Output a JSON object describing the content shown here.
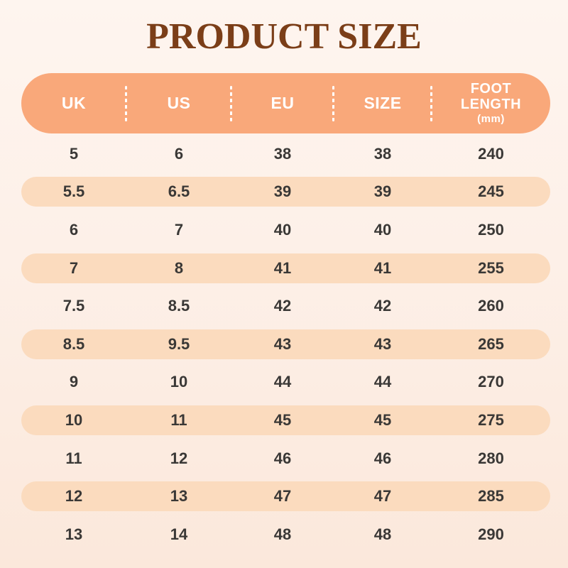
{
  "title": "PRODUCT SIZE",
  "colors": {
    "page_bg_top": "#fef5ef",
    "page_bg_bottom": "#fbe8db",
    "header_bg": "#f9a87a",
    "header_text": "#ffffff",
    "alt_row_bg": "#fbdbbe",
    "cell_text": "#3a3836",
    "title_text": "#7b3e18"
  },
  "chart_data": {
    "type": "table",
    "title": "PRODUCT SIZE",
    "columns": [
      {
        "label": "UK"
      },
      {
        "label": "US"
      },
      {
        "label": "EU"
      },
      {
        "label": "SIZE"
      },
      {
        "label": "FOOT LENGTH",
        "sublabel": "(mm)"
      }
    ],
    "rows": [
      [
        "5",
        "6",
        "38",
        "38",
        "240"
      ],
      [
        "5.5",
        "6.5",
        "39",
        "39",
        "245"
      ],
      [
        "6",
        "7",
        "40",
        "40",
        "250"
      ],
      [
        "7",
        "8",
        "41",
        "41",
        "255"
      ],
      [
        "7.5",
        "8.5",
        "42",
        "42",
        "260"
      ],
      [
        "8.5",
        "9.5",
        "43",
        "43",
        "265"
      ],
      [
        "9",
        "10",
        "44",
        "44",
        "270"
      ],
      [
        "10",
        "11",
        "45",
        "45",
        "275"
      ],
      [
        "11",
        "12",
        "46",
        "46",
        "280"
      ],
      [
        "12",
        "13",
        "47",
        "47",
        "285"
      ],
      [
        "13",
        "14",
        "48",
        "48",
        "290"
      ]
    ]
  }
}
